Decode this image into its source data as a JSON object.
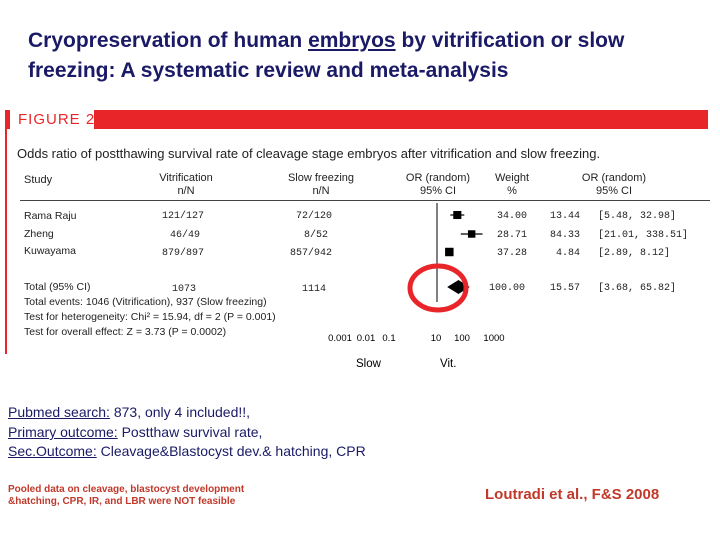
{
  "slide": {
    "title_pre": "Cryopreservation of human ",
    "title_link": "embryos",
    "title_post": " by vitrification or slow freezing: A systematic review and meta-analysis"
  },
  "figure": {
    "label": "FIGURE 2",
    "caption": "Odds ratio of postthawing survival rate of cleavage stage embryos after vitrification and slow freezing."
  },
  "table": {
    "headers": {
      "study": "Study",
      "vit_line1": "Vitrification",
      "vit_line2": "n/N",
      "slow_line1": "Slow freezing",
      "slow_line2": "n/N",
      "or_line1": "OR (random)",
      "or_line2": "95% CI",
      "weight_line1": "Weight",
      "weight_line2": "%",
      "or2_line1": "OR (random)",
      "or2_line2": "95% CI"
    },
    "rows": [
      {
        "study": "Rama Raju",
        "vit": "121/127",
        "slow": "72/120",
        "weight": "34.00",
        "or": "13.44",
        "ci": "[5.48, 32.98]"
      },
      {
        "study": "Zheng",
        "vit": "46/49",
        "slow": "8/52",
        "weight": "28.71",
        "or": "84.33",
        "ci": "[21.01, 338.51]"
      },
      {
        "study": "Kuwayama",
        "vit": "879/897",
        "slow": "857/942",
        "weight": "37.28",
        "or": "4.84",
        "ci": "[2.89, 8.12]"
      }
    ],
    "total": {
      "study": "Total (95% CI)",
      "vit": "1073",
      "slow": "1114",
      "weight": "100.00",
      "or": "15.57",
      "ci": "[3.68, 65.82]"
    },
    "stats": [
      "Total events: 1046 (Vitrification), 937 (Slow freezing)",
      "Test for heterogeneity: Chi² = 15.94, df = 2 (P = 0.001)",
      "Test for overall effect: Z = 3.73 (P = 0.0002)"
    ]
  },
  "chart_data": {
    "type": "forest",
    "x_scale": "log",
    "x_ticks": [
      0.001,
      0.01,
      0.1,
      10,
      100,
      1000
    ],
    "x_tick_labels": [
      "0.001",
      "0.01",
      "0.1",
      "10",
      "100",
      "1000"
    ],
    "x_side_labels": {
      "left": "Slow",
      "right": "Vit."
    },
    "studies": [
      {
        "name": "Rama Raju",
        "or": 13.44,
        "ci_low": 5.48,
        "ci_high": 32.98,
        "weight": 34.0
      },
      {
        "name": "Zheng",
        "or": 84.33,
        "ci_low": 21.01,
        "ci_high": 338.51,
        "weight": 28.71
      },
      {
        "name": "Kuwayama",
        "or": 4.84,
        "ci_low": 2.89,
        "ci_high": 8.12,
        "weight": 37.28
      }
    ],
    "pooled": {
      "name": "Total (95% CI)",
      "or": 15.57,
      "ci_low": 3.68,
      "ci_high": 65.82
    }
  },
  "notes": {
    "pubmed_label": "Pubmed search:",
    "pubmed_text": " 873,  only 4 included!!,",
    "primary_label": "Primary outcome:",
    "primary_text": " Postthaw survival rate,",
    "secondary_label": "Sec.Outcome:",
    "secondary_text": " Cleavage&Blastocyst dev.& hatching, CPR"
  },
  "footnote": "Pooled data on cleavage, blastocyst development &hatching, CPR, IR, and LBR were NOT feasible",
  "citation": "Loutradi et al., F&S 2008",
  "colors": {
    "accent": "#e8262a",
    "title": "#1a1a66",
    "highlight": "#e8262a"
  }
}
